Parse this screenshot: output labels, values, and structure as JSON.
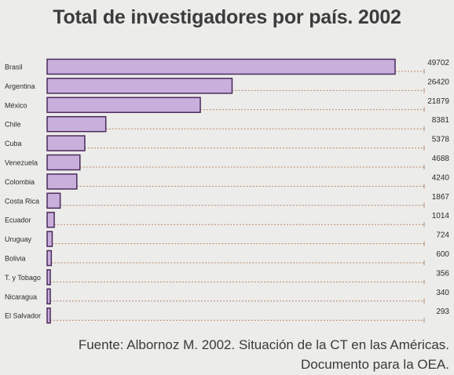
{
  "chart_data": {
    "type": "bar",
    "orientation": "horizontal",
    "title": "Total de investigadores por país. 2002",
    "categories": [
      "Brasil",
      "Argentina",
      "México",
      "Chile",
      "Cuba",
      "Venezuela",
      "Colombia",
      "Costa Rica",
      "Ecuador",
      "Uruguay",
      "Bolivia",
      "T. y Tobago",
      "Nicaragua",
      "El Salvador"
    ],
    "values": [
      49702,
      26420,
      21879,
      8381,
      5378,
      4688,
      4240,
      1867,
      1014,
      724,
      600,
      356,
      340,
      293
    ],
    "value_labels": [
      "49702",
      "26420",
      "21879",
      "8381",
      "5378",
      "4688",
      "4240",
      "1867",
      "1014",
      "724",
      "600",
      "356",
      "340",
      "293"
    ],
    "xlim": [
      0,
      49702
    ],
    "xlabel": "",
    "ylabel": "",
    "grid": false,
    "legend": "none",
    "colors": {
      "bar_fill": "#c9b0dc",
      "bar_stroke": "#4b2a5e",
      "leader": "#b58a6a",
      "text": "#2b2b2b"
    }
  },
  "source": {
    "line1": "Fuente: Albornoz M. 2002. Situación de la CT en las Américas.",
    "line2": "Documento para la OEA."
  }
}
